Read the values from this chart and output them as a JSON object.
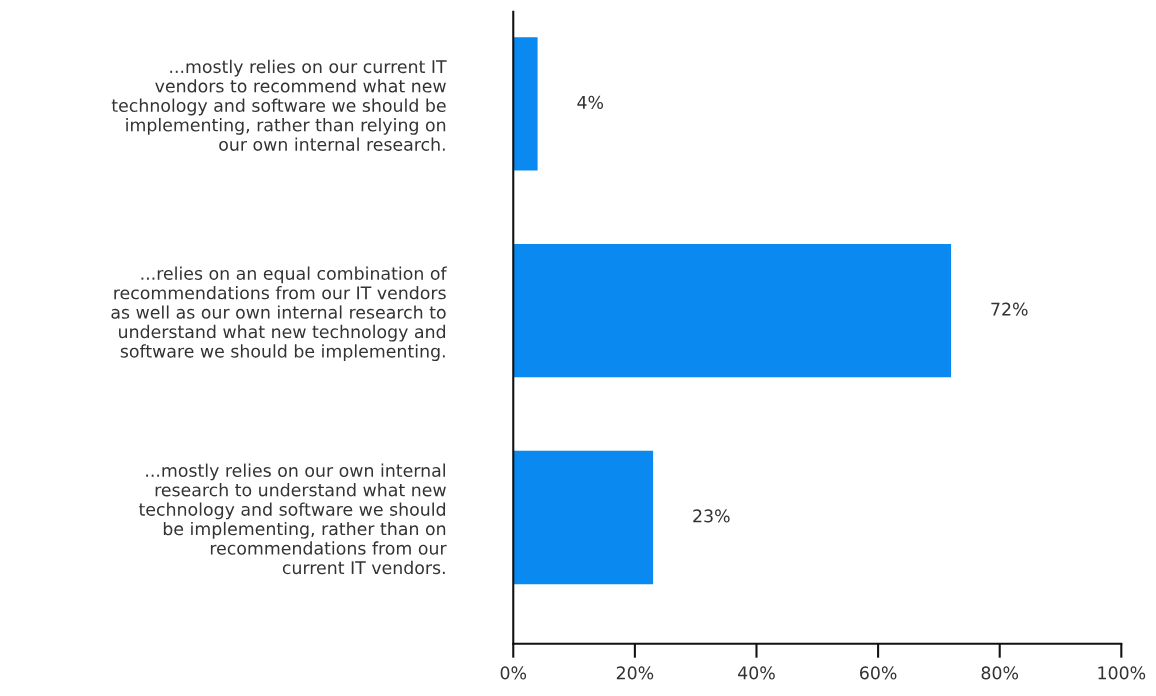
{
  "chart_data": {
    "type": "bar",
    "orientation": "horizontal",
    "categories": [
      "...mostly relies on our current IT\nvendors to recommend what new\ntechnology and software we should be\nimplementing, rather than relying on\nour own internal research.",
      "...relies on an equal combination of\nrecommendations from our IT vendors\nas well as our own internal research to\nunderstand what new technology and\nsoftware we should be implementing.",
      "...mostly relies on our own internal\nresearch to understand what new\ntechnology and software we should\nbe implementing, rather than on\nrecommendations from our\ncurrent IT vendors."
    ],
    "values": [
      4,
      72,
      23
    ],
    "value_labels": [
      "4%",
      "72%",
      "23%"
    ],
    "color": "#0a89f0",
    "xlim": [
      0,
      100
    ],
    "xticks": [
      {
        "value": 0,
        "label": "0%"
      },
      {
        "value": 20,
        "label": "20%"
      },
      {
        "value": 40,
        "label": "40%"
      },
      {
        "value": 60,
        "label": "60%"
      },
      {
        "value": 80,
        "label": "80%"
      },
      {
        "value": 100,
        "label": "100%"
      }
    ],
    "grid": false
  }
}
